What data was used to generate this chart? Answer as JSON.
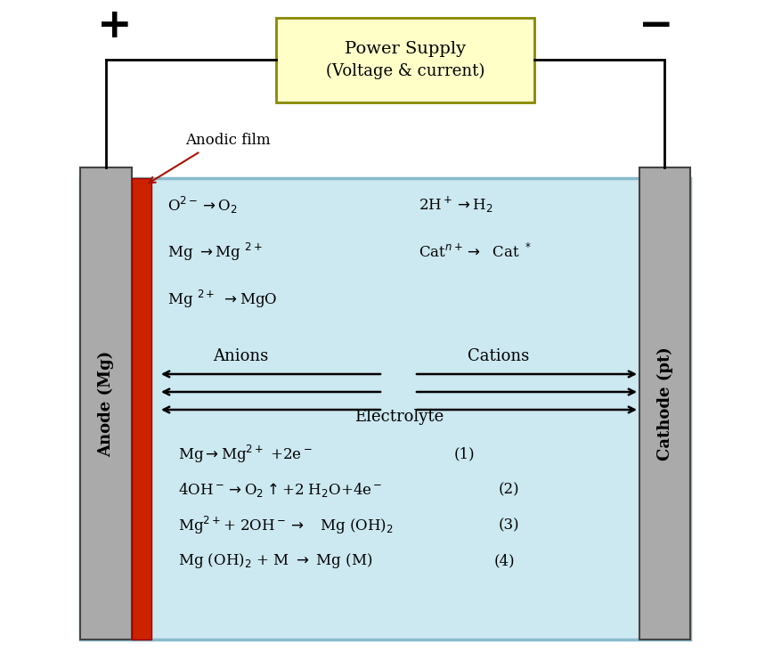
{
  "bg_color": "#ffffff",
  "electrolyte_color": "#cce8f0",
  "electrolyte_border": "#88bbcc",
  "anode_color": "#aaaaaa",
  "cathode_color": "#aaaaaa",
  "anodic_film_color": "#cc2200",
  "power_supply_fill": "#ffffc8",
  "power_supply_border": "#888800",
  "wire_color": "#000000",
  "text_color": "#000000",
  "arrow_color": "#000000",
  "power_supply_text1": "Power Supply",
  "power_supply_text2": "(Voltage & current)",
  "anode_label": "Anode (Mg)",
  "cathode_label": "Cathode (pt)",
  "anodic_film_label": "Anodic film",
  "electrolyte_label": "Electrolyte",
  "anions_label": "Anions",
  "cations_label": "Cations"
}
